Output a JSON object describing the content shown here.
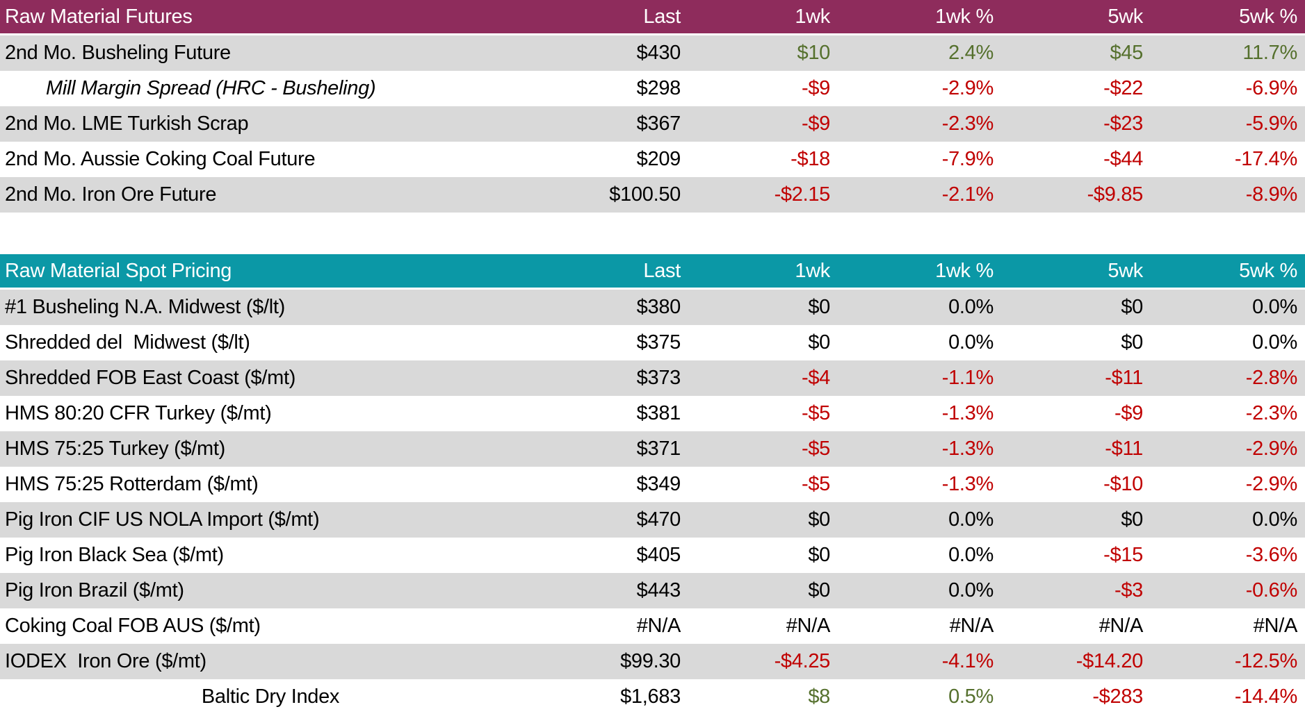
{
  "report": {
    "colors": {
      "futures_header": "#8E2C5C",
      "spot_header": "#0B98A6",
      "stripe": "#D9D9D9",
      "positive": "#55702D",
      "negative": "#C00000",
      "neutral": "#000000"
    },
    "tables": [
      {
        "title": "Raw Material Futures",
        "header_color": "#8E2C5C",
        "columns": [
          "Last",
          "1wk",
          "1wk %",
          "5wk",
          "5wk %"
        ],
        "rows": [
          {
            "label": "2nd Mo. Busheling Future",
            "label_style": "",
            "values": [
              {
                "v": "$430",
                "c": "k"
              },
              {
                "v": "$10",
                "c": "g"
              },
              {
                "v": "2.4%",
                "c": "g"
              },
              {
                "v": "$45",
                "c": "g"
              },
              {
                "v": "11.7%",
                "c": "g"
              }
            ]
          },
          {
            "label": "Mill Margin Spread (HRC - Busheling)",
            "label_style": "italic-indent",
            "values": [
              {
                "v": "$298",
                "c": "k"
              },
              {
                "v": "-$9",
                "c": "r"
              },
              {
                "v": "-2.9%",
                "c": "r"
              },
              {
                "v": "-$22",
                "c": "r"
              },
              {
                "v": "-6.9%",
                "c": "r"
              }
            ]
          },
          {
            "label": "2nd Mo. LME Turkish Scrap",
            "label_style": "",
            "values": [
              {
                "v": "$367",
                "c": "k"
              },
              {
                "v": "-$9",
                "c": "r"
              },
              {
                "v": "-2.3%",
                "c": "r"
              },
              {
                "v": "-$23",
                "c": "r"
              },
              {
                "v": "-5.9%",
                "c": "r"
              }
            ]
          },
          {
            "label": "2nd Mo. Aussie Coking Coal Future",
            "label_style": "",
            "values": [
              {
                "v": "$209",
                "c": "k"
              },
              {
                "v": "-$18",
                "c": "r"
              },
              {
                "v": "-7.9%",
                "c": "r"
              },
              {
                "v": "-$44",
                "c": "r"
              },
              {
                "v": "-17.4%",
                "c": "r"
              }
            ]
          },
          {
            "label": "2nd Mo. Iron Ore Future",
            "label_style": "",
            "values": [
              {
                "v": "$100.50",
                "c": "k"
              },
              {
                "v": "-$2.15",
                "c": "r"
              },
              {
                "v": "-2.1%",
                "c": "r"
              },
              {
                "v": "-$9.85",
                "c": "r"
              },
              {
                "v": "-8.9%",
                "c": "r"
              }
            ]
          }
        ]
      },
      {
        "title": "Raw Material Spot Pricing",
        "header_color": "#0B98A6",
        "columns": [
          "Last",
          "1wk",
          "1wk %",
          "5wk",
          "5wk %"
        ],
        "rows": [
          {
            "label": "#1 Busheling N.A. Midwest ($/lt)",
            "label_style": "",
            "values": [
              {
                "v": "$380",
                "c": "k"
              },
              {
                "v": "$0",
                "c": "k"
              },
              {
                "v": "0.0%",
                "c": "k"
              },
              {
                "v": "$0",
                "c": "k"
              },
              {
                "v": "0.0%",
                "c": "k"
              }
            ]
          },
          {
            "label": "Shredded del  Midwest ($/lt)",
            "label_style": "",
            "values": [
              {
                "v": "$375",
                "c": "k"
              },
              {
                "v": "$0",
                "c": "k"
              },
              {
                "v": "0.0%",
                "c": "k"
              },
              {
                "v": "$0",
                "c": "k"
              },
              {
                "v": "0.0%",
                "c": "k"
              }
            ]
          },
          {
            "label": "Shredded FOB East Coast ($/mt)",
            "label_style": "",
            "values": [
              {
                "v": "$373",
                "c": "k"
              },
              {
                "v": "-$4",
                "c": "r"
              },
              {
                "v": "-1.1%",
                "c": "r"
              },
              {
                "v": "-$11",
                "c": "r"
              },
              {
                "v": "-2.8%",
                "c": "r"
              }
            ]
          },
          {
            "label": "HMS 80:20 CFR Turkey ($/mt)",
            "label_style": "",
            "values": [
              {
                "v": "$381",
                "c": "k"
              },
              {
                "v": "-$5",
                "c": "r"
              },
              {
                "v": "-1.3%",
                "c": "r"
              },
              {
                "v": "-$9",
                "c": "r"
              },
              {
                "v": "-2.3%",
                "c": "r"
              }
            ]
          },
          {
            "label": "HMS 75:25 Turkey ($/mt)",
            "label_style": "",
            "values": [
              {
                "v": "$371",
                "c": "k"
              },
              {
                "v": "-$5",
                "c": "r"
              },
              {
                "v": "-1.3%",
                "c": "r"
              },
              {
                "v": "-$11",
                "c": "r"
              },
              {
                "v": "-2.9%",
                "c": "r"
              }
            ]
          },
          {
            "label": "HMS 75:25 Rotterdam ($/mt)",
            "label_style": "",
            "values": [
              {
                "v": "$349",
                "c": "k"
              },
              {
                "v": "-$5",
                "c": "r"
              },
              {
                "v": "-1.3%",
                "c": "r"
              },
              {
                "v": "-$10",
                "c": "r"
              },
              {
                "v": "-2.9%",
                "c": "r"
              }
            ]
          },
          {
            "label": "Pig Iron CIF US NOLA Import ($/mt)",
            "label_style": "",
            "values": [
              {
                "v": "$470",
                "c": "k"
              },
              {
                "v": "$0",
                "c": "k"
              },
              {
                "v": "0.0%",
                "c": "k"
              },
              {
                "v": "$0",
                "c": "k"
              },
              {
                "v": "0.0%",
                "c": "k"
              }
            ]
          },
          {
            "label": "Pig Iron Black Sea ($/mt)",
            "label_style": "",
            "values": [
              {
                "v": "$405",
                "c": "k"
              },
              {
                "v": "$0",
                "c": "k"
              },
              {
                "v": "0.0%",
                "c": "k"
              },
              {
                "v": "-$15",
                "c": "r"
              },
              {
                "v": "-3.6%",
                "c": "r"
              }
            ]
          },
          {
            "label": "Pig Iron Brazil ($/mt)",
            "label_style": "",
            "values": [
              {
                "v": "$443",
                "c": "k"
              },
              {
                "v": "$0",
                "c": "k"
              },
              {
                "v": "0.0%",
                "c": "k"
              },
              {
                "v": "-$3",
                "c": "r"
              },
              {
                "v": "-0.6%",
                "c": "r"
              }
            ]
          },
          {
            "label": "Coking Coal FOB AUS ($/mt)",
            "label_style": "",
            "values": [
              {
                "v": "#N/A",
                "c": "k"
              },
              {
                "v": "#N/A",
                "c": "k"
              },
              {
                "v": "#N/A",
                "c": "k"
              },
              {
                "v": "#N/A",
                "c": "k"
              },
              {
                "v": "#N/A",
                "c": "k"
              }
            ]
          },
          {
            "label": "IODEX  Iron Ore ($/mt)",
            "label_style": "",
            "values": [
              {
                "v": "$99.30",
                "c": "k"
              },
              {
                "v": "-$4.25",
                "c": "r"
              },
              {
                "v": "-4.1%",
                "c": "r"
              },
              {
                "v": "-$14.20",
                "c": "r"
              },
              {
                "v": "-12.5%",
                "c": "r"
              }
            ]
          },
          {
            "label": "Baltic Dry Index",
            "label_style": "center",
            "values": [
              {
                "v": "$1,683",
                "c": "k"
              },
              {
                "v": "$8",
                "c": "g"
              },
              {
                "v": "0.5%",
                "c": "g"
              },
              {
                "v": "-$283",
                "c": "r"
              },
              {
                "v": "-14.4%",
                "c": "r"
              }
            ]
          }
        ]
      }
    ]
  }
}
